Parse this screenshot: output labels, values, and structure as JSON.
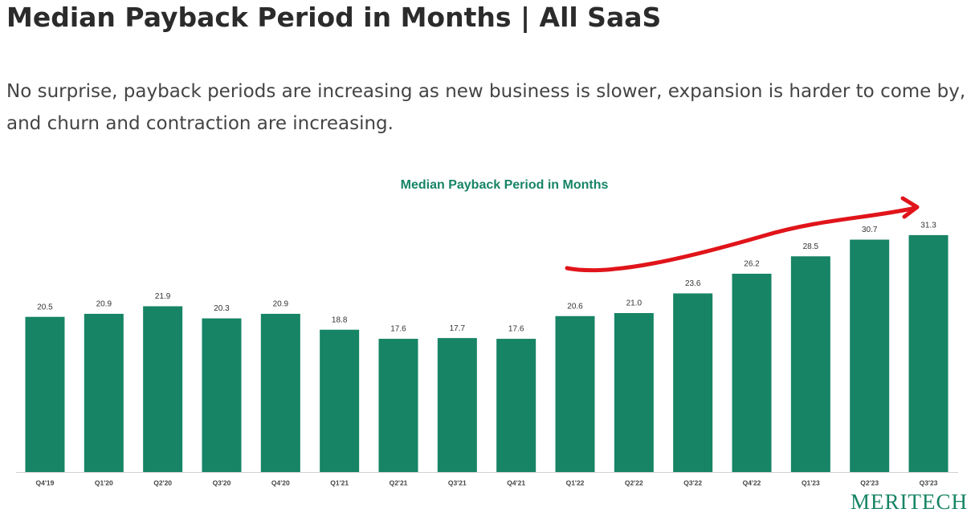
{
  "header": {
    "title": "Median Payback Period in Months | All SaaS",
    "subtitle": "No surprise, payback periods are increasing as new business is slower, expansion is harder to come by, and churn and contraction are increasing."
  },
  "chart_data": {
    "type": "bar",
    "title": "Median Payback Period in Months",
    "categories": [
      "Q4'19",
      "Q1'20",
      "Q2'20",
      "Q3'20",
      "Q4'20",
      "Q1'21",
      "Q2'21",
      "Q3'21",
      "Q4'21",
      "Q1'22",
      "Q2'22",
      "Q3'22",
      "Q4'22",
      "Q1'23",
      "Q2'23",
      "Q3'23"
    ],
    "values": [
      20.5,
      20.9,
      21.9,
      20.3,
      20.9,
      18.8,
      17.6,
      17.7,
      17.6,
      20.6,
      21.0,
      23.6,
      26.2,
      28.5,
      30.7,
      31.3
    ],
    "value_labels": [
      "20.5",
      "20.9",
      "21.9",
      "20.3",
      "20.9",
      "18.8",
      "17.6",
      "17.7",
      "17.6",
      "20.6",
      "21.0",
      "23.6",
      "26.2",
      "28.5",
      "30.7",
      "31.3"
    ],
    "color": "#168465",
    "ylim": [
      0,
      35
    ]
  },
  "logo": "MERITECH"
}
